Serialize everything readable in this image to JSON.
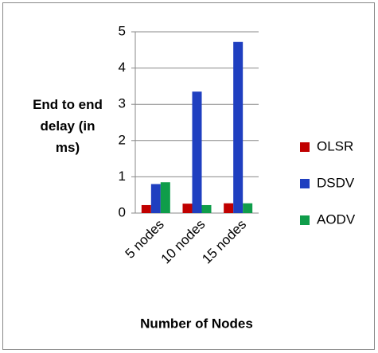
{
  "chart_data": {
    "type": "bar",
    "x_label": "Number of Nodes",
    "y_label": "End to end delay (in ms)",
    "categories": [
      "5 nodes",
      "10 nodes",
      "15 nodes"
    ],
    "series": [
      {
        "name": "OLSR",
        "color": "#c00000",
        "values": [
          0.22,
          0.26,
          0.27
        ]
      },
      {
        "name": "DSDV",
        "color": "#1f3fc0",
        "values": [
          0.8,
          3.35,
          4.72
        ]
      },
      {
        "name": "AODV",
        "color": "#0f9d4a",
        "values": [
          0.85,
          0.22,
          0.27
        ]
      }
    ],
    "ylim": [
      0,
      5
    ],
    "yticks": [
      0,
      1,
      2,
      3,
      4,
      5
    ],
    "grid": true,
    "legend": "right"
  }
}
